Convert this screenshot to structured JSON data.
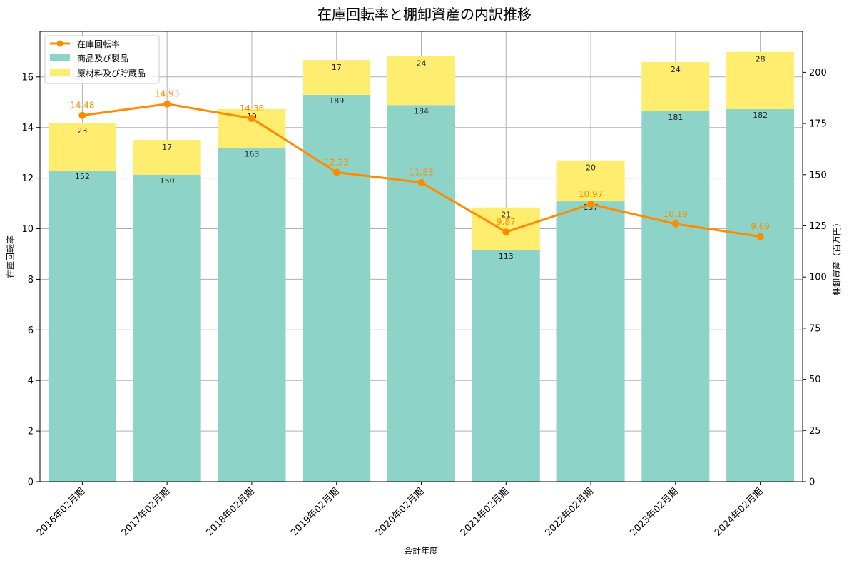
{
  "chart_data": {
    "type": "bar",
    "title": "在庫回転率と棚卸資産の内訳推移",
    "xlabel": "会計年度",
    "ylabel_left": "在庫回転率",
    "ylabel_right": "棚卸資産（百万円）",
    "ylim_left": [
      0,
      17.8
    ],
    "ylim_right": [
      0,
      220
    ],
    "yticks_left": [
      0,
      2,
      4,
      6,
      8,
      10,
      12,
      14,
      16
    ],
    "yticks_right": [
      0,
      25,
      50,
      75,
      100,
      125,
      150,
      175,
      200
    ],
    "grid": true,
    "legend_position": "top-left",
    "categories": [
      "2016年02月期",
      "2017年02月期",
      "2018年02月期",
      "2019年02月期",
      "2020年02月期",
      "2021年02月期",
      "2022年02月期",
      "2023年02月期",
      "2024年02月期"
    ],
    "series": [
      {
        "name": "在庫回転率",
        "kind": "line",
        "axis": "left",
        "color": "#ff8c00",
        "values": [
          14.48,
          14.93,
          14.36,
          12.23,
          11.83,
          9.87,
          10.97,
          10.19,
          9.69
        ]
      },
      {
        "name": "商品及び製品",
        "kind": "bar",
        "axis": "right",
        "color": "#8dd3c7",
        "values": [
          152,
          150,
          163,
          189,
          184,
          113,
          137,
          181,
          182
        ]
      },
      {
        "name": "原材料及び貯蔵品",
        "kind": "bar",
        "axis": "right",
        "color": "#ffed6f",
        "values": [
          23,
          17,
          19,
          17,
          24,
          21,
          20,
          24,
          28
        ]
      }
    ]
  }
}
